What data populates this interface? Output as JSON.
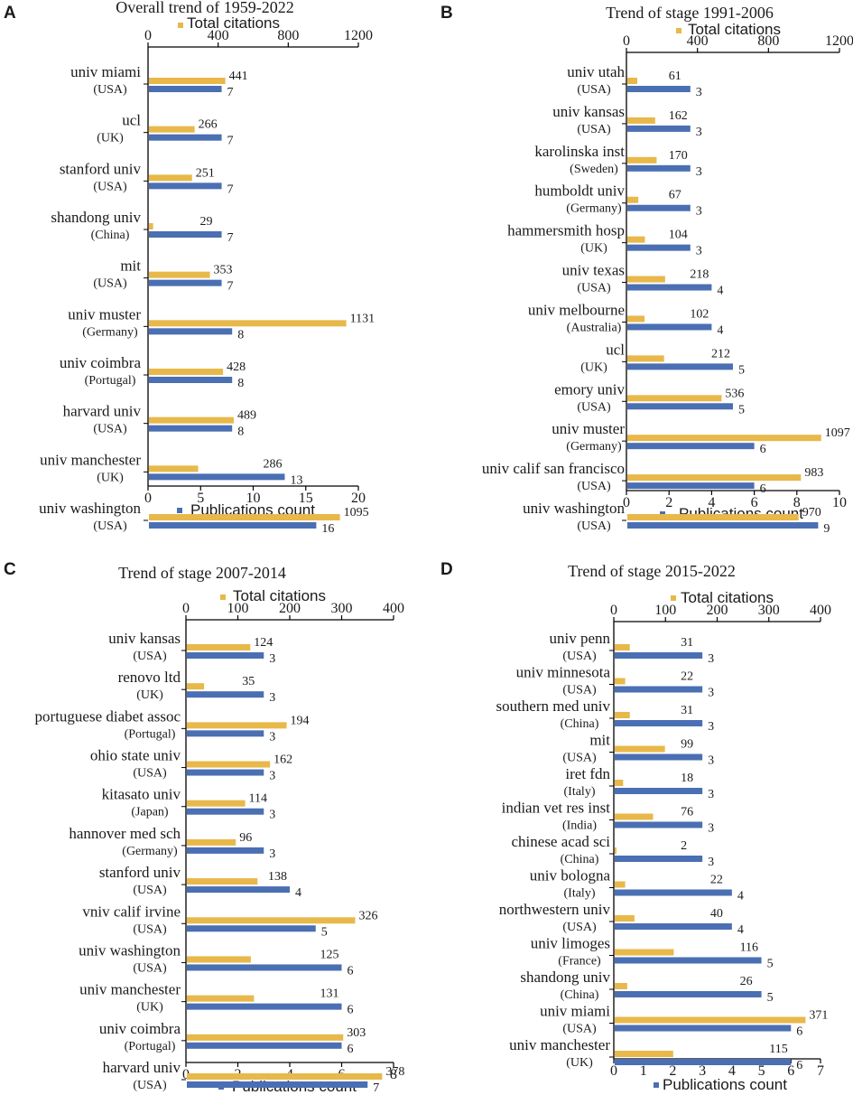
{
  "colors": {
    "citations": "#E8B84A",
    "publications": "#4A6FB3",
    "axis": "#000000"
  },
  "chart_data": [
    {
      "type": "bar",
      "panel": "A",
      "title": "Overall trend of 1959-2022",
      "legend_citations": "Total citations",
      "legend_publications": "Publications count",
      "top_axis": {
        "ticks": [
          "0",
          "400",
          "800",
          "1200"
        ],
        "range": [
          0,
          1200
        ]
      },
      "bottom_axis": {
        "ticks": [
          "0",
          "5",
          "10",
          "15",
          "20"
        ],
        "range": [
          0,
          20
        ]
      },
      "institutions": [
        "univ miami",
        "ucl",
        "stanford univ",
        "shandong univ",
        "mit",
        "univ muster",
        "univ coimbra",
        "harvard univ",
        "univ manchester",
        "univ washington"
      ],
      "countries": [
        "(USA)",
        "(UK)",
        "(USA)",
        "(China)",
        "(USA)",
        "(Germany)",
        "(Portugal)",
        "(USA)",
        "(UK)",
        "(USA)"
      ],
      "series": [
        {
          "name": "Total citations",
          "values": [
            441,
            266,
            251,
            29,
            353,
            1131,
            428,
            489,
            286,
            1095
          ]
        },
        {
          "name": "Publications count",
          "values": [
            7,
            7,
            7,
            7,
            7,
            8,
            8,
            8,
            13,
            16
          ]
        }
      ]
    },
    {
      "type": "bar",
      "panel": "B",
      "title": "Trend of stage 1991-2006",
      "legend_citations": "Total citations",
      "legend_publications": "Publications count",
      "top_axis": {
        "ticks": [
          "0",
          "400",
          "800",
          "1200"
        ],
        "range": [
          0,
          1200
        ]
      },
      "bottom_axis": {
        "ticks": [
          "0",
          "2",
          "4",
          "6",
          "8",
          "10"
        ],
        "range": [
          0,
          10
        ]
      },
      "institutions": [
        "univ utah",
        "univ kansas",
        "karolinska inst",
        "humboldt univ",
        "hammersmith hosp",
        "univ texas",
        "univ melbourne",
        "ucl",
        "emory univ",
        "univ muster",
        "univ calif san francisco",
        "univ washington"
      ],
      "countries": [
        "(USA)",
        "(USA)",
        "(Sweden)",
        "(Germany)",
        "(UK)",
        "(USA)",
        "(Australia)",
        "(UK)",
        "(USA)",
        "(Germany)",
        "(USA)",
        "(USA)"
      ],
      "series": [
        {
          "name": "Total citations",
          "values": [
            61,
            162,
            170,
            67,
            104,
            218,
            102,
            212,
            536,
            1097,
            983,
            970
          ]
        },
        {
          "name": "Publications count",
          "values": [
            3,
            3,
            3,
            3,
            3,
            4,
            4,
            5,
            5,
            6,
            6,
            9
          ]
        }
      ]
    },
    {
      "type": "bar",
      "panel": "C",
      "title": "Trend of stage 2007-2014",
      "legend_citations": "Total citations",
      "legend_publications": "Publications count",
      "top_axis": {
        "ticks": [
          "0",
          "100",
          "200",
          "300",
          "400"
        ],
        "range": [
          0,
          400
        ]
      },
      "bottom_axis": {
        "ticks": [
          "0",
          "2",
          "4",
          "6",
          "8"
        ],
        "range": [
          0,
          8
        ]
      },
      "institutions": [
        "univ kansas",
        "renovo ltd",
        "portuguese diabet assoc",
        "ohio state univ",
        "kitasato univ",
        "hannover med sch",
        "stanford univ",
        "vniv calif irvine",
        "univ washington",
        "univ manchester",
        "univ coimbra",
        "harvard univ"
      ],
      "countries": [
        "(USA)",
        "(UK)",
        "(Portugal)",
        "(USA)",
        "(Japan)",
        "(Germany)",
        "(USA)",
        "(USA)",
        "(USA)",
        "(UK)",
        "(Portugal)",
        "(USA)"
      ],
      "series": [
        {
          "name": "Total citations",
          "values": [
            124,
            35,
            194,
            162,
            114,
            96,
            138,
            326,
            125,
            131,
            303,
            378
          ]
        },
        {
          "name": "Publications count",
          "values": [
            3,
            3,
            3,
            3,
            3,
            3,
            4,
            5,
            6,
            6,
            6,
            7
          ]
        }
      ]
    },
    {
      "type": "bar",
      "panel": "D",
      "title": "Trend of stage 2015-2022",
      "legend_citations": "Total citations",
      "legend_publications": "Publications count",
      "top_axis": {
        "ticks": [
          "0",
          "100",
          "200",
          "300",
          "400"
        ],
        "range": [
          0,
          400
        ]
      },
      "bottom_axis": {
        "ticks": [
          "0",
          "1",
          "2",
          "3",
          "4",
          "5",
          "6",
          "7"
        ],
        "range": [
          0,
          7
        ]
      },
      "institutions": [
        "univ penn",
        "univ minnesota",
        "southern med univ",
        "mit",
        "iret fdn",
        "indian vet res inst",
        "chinese acad sci",
        "univ bologna",
        "northwestern univ",
        "univ limoges",
        "shandong univ",
        "univ miami",
        "univ manchester"
      ],
      "countries": [
        "(USA)",
        "(USA)",
        "(China)",
        "(USA)",
        "(Italy)",
        "(India)",
        "(China)",
        "(Italy)",
        "(USA)",
        "(France)",
        "(China)",
        "(USA)",
        "(UK)"
      ],
      "series": [
        {
          "name": "Total citations",
          "values": [
            31,
            22,
            31,
            99,
            18,
            76,
            2,
            22,
            40,
            116,
            26,
            371,
            115
          ]
        },
        {
          "name": "Publications count",
          "values": [
            3,
            3,
            3,
            3,
            3,
            3,
            3,
            4,
            4,
            5,
            5,
            6,
            6
          ]
        }
      ]
    }
  ]
}
